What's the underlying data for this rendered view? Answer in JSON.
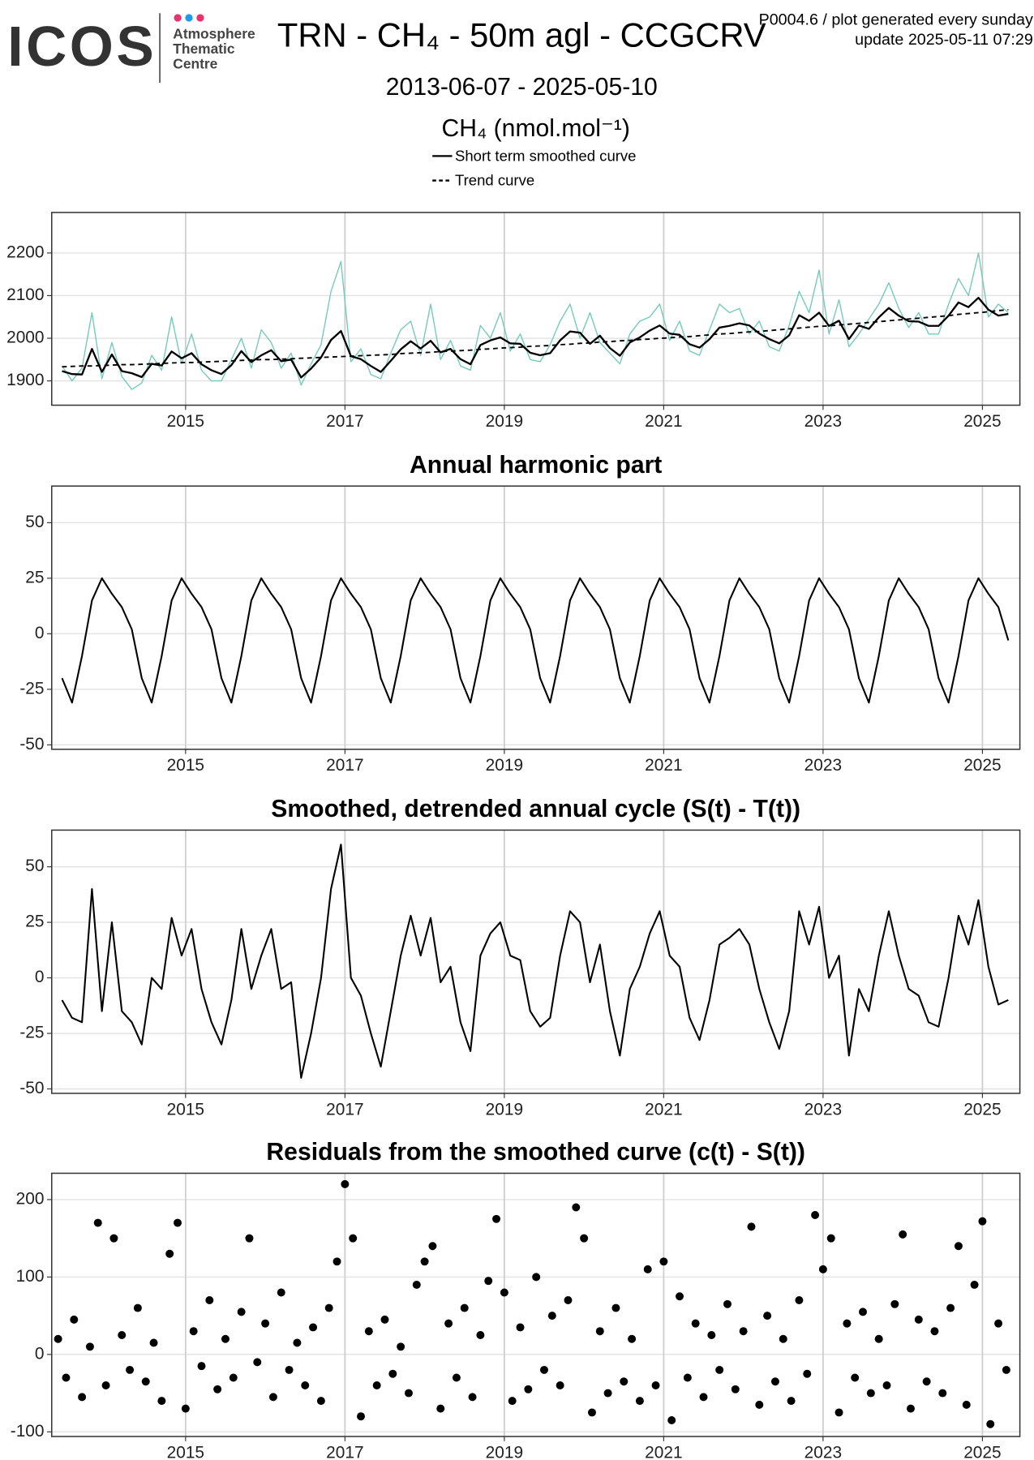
{
  "header": {
    "logo": "ICOS",
    "logo_lines": [
      "Atmosphere",
      "Thematic",
      "Centre"
    ],
    "title": "TRN - CH₄ - 50m agl - CCGCRV",
    "note": "P0004.6 / plot generated every sunday",
    "update": "update  2025-05-11 07:29",
    "period": "2013-06-07 - 2025-05-10"
  },
  "chart_data": [
    {
      "type": "line",
      "ylabel": "CH₄ (nmol.mol⁻¹)",
      "grid": true,
      "xlim": [
        2013.32,
        2025.47
      ],
      "xticks": [
        2015,
        2017,
        2019,
        2021,
        2023,
        2025
      ],
      "ylim": [
        1843,
        2295
      ],
      "yticks": [
        1900,
        2000,
        2100,
        2200
      ],
      "x": [
        2013.45,
        2013.575,
        2013.7,
        2013.825,
        2013.95,
        2014.075,
        2014.2,
        2014.325,
        2014.45,
        2014.575,
        2014.7,
        2014.825,
        2014.95,
        2015.075,
        2015.2,
        2015.325,
        2015.45,
        2015.575,
        2015.7,
        2015.825,
        2015.95,
        2016.075,
        2016.2,
        2016.325,
        2016.45,
        2016.575,
        2016.7,
        2016.825,
        2016.95,
        2017.075,
        2017.2,
        2017.325,
        2017.45,
        2017.575,
        2017.7,
        2017.825,
        2017.95,
        2018.075,
        2018.2,
        2018.325,
        2018.45,
        2018.575,
        2018.7,
        2018.825,
        2018.95,
        2019.075,
        2019.2,
        2019.325,
        2019.45,
        2019.575,
        2019.7,
        2019.825,
        2019.95,
        2020.075,
        2020.2,
        2020.325,
        2020.45,
        2020.575,
        2020.7,
        2020.825,
        2020.95,
        2021.075,
        2021.2,
        2021.325,
        2021.45,
        2021.575,
        2021.7,
        2021.825,
        2021.95,
        2022.075,
        2022.2,
        2022.325,
        2022.45,
        2022.575,
        2022.7,
        2022.825,
        2022.95,
        2023.075,
        2023.2,
        2023.325,
        2023.45,
        2023.575,
        2023.7,
        2023.825,
        2023.95,
        2024.075,
        2024.2,
        2024.325,
        2024.45,
        2024.575,
        2024.7,
        2024.825,
        2024.95,
        2025.075,
        2025.2,
        2025.325
      ],
      "series": [
        {
          "color": "#74cbb9",
          "width": 1.2,
          "values": [
            1935,
            1900,
            1930,
            2060,
            1905,
            1990,
            1910,
            1880,
            1895,
            1960,
            1925,
            2050,
            1940,
            2010,
            1925,
            1900,
            1900,
            1950,
            2000,
            1930,
            2020,
            1990,
            1930,
            1965,
            1890,
            1940,
            1985,
            2110,
            2180,
            1945,
            1975,
            1915,
            1905,
            1965,
            2020,
            2040,
            1960,
            2080,
            1950,
            1995,
            1935,
            1925,
            2030,
            2000,
            2060,
            1970,
            2010,
            1950,
            1945,
            1985,
            2040,
            2080,
            2000,
            2060,
            1990,
            1965,
            1940,
            2010,
            2040,
            2050,
            2080,
            1995,
            2040,
            1970,
            1960,
            2020,
            2080,
            2060,
            2070,
            2010,
            2040,
            1980,
            1970,
            2030,
            2110,
            2060,
            2160,
            2010,
            2090,
            1980,
            2010,
            2045,
            2080,
            2130,
            2070,
            2025,
            2060,
            2010,
            2010,
            2080,
            2140,
            2100,
            2200,
            2050,
            2080,
            2060
          ]
        },
        {
          "name": "Short term smoothed curve",
          "color": "#000000",
          "width": 2,
          "linestyle": "solid",
          "values": [
            1923,
            1916,
            1915,
            1975,
            1921,
            1962,
            1923,
            1918,
            1909,
            1940,
            1936,
            1969,
            1953,
            1965,
            1939,
            1925,
            1916,
            1937,
            1970,
            1944,
            1960,
            1972,
            1946,
            1950,
            1908,
            1929,
            1955,
            1996,
            2017,
            1958,
            1951,
            1935,
            1921,
            1947,
            1974,
            1993,
            1976,
            1994,
            1967,
            1975,
            1951,
            1939,
            1984,
            1995,
            2002,
            1988,
            1987,
            1966,
            1960,
            1965,
            1995,
            2016,
            2013,
            1987,
            2006,
            1977,
            1959,
            1990,
            2002,
            2018,
            2030,
            2011,
            2008,
            1986,
            1978,
            1998,
            2025,
            2029,
            2035,
            2030,
            2011,
            1998,
            1988,
            2007,
            2054,
            2041,
            2060,
            2029,
            2041,
            1998,
            2030,
            2022,
            2049,
            2071,
            2053,
            2040,
            2039,
            2029,
            2029,
            2053,
            2084,
            2073,
            2095,
            2067,
            2053,
            2057
          ]
        },
        {
          "name": "Trend curve",
          "color": "#000000",
          "width": 1.6,
          "linestyle": "dashed",
          "values": [
            1933,
            1934,
            1935,
            1935,
            1936,
            1937,
            1938,
            1938,
            1939,
            1940,
            1941,
            1942,
            1943,
            1943,
            1944,
            1945,
            1946,
            1947,
            1948,
            1949,
            1950,
            1950,
            1951,
            1952,
            1953,
            1954,
            1955,
            1956,
            1957,
            1958,
            1959,
            1960,
            1961,
            1962,
            1964,
            1965,
            1966,
            1967,
            1969,
            1970,
            1971,
            1972,
            1974,
            1975,
            1977,
            1978,
            1979,
            1981,
            1982,
            1983,
            1985,
            1986,
            1988,
            1989,
            1991,
            1992,
            1994,
            1995,
            1997,
            1998,
            2000,
            2001,
            2003,
            2004,
            2006,
            2008,
            2010,
            2011,
            2013,
            2015,
            2016,
            2018,
            2020,
            2022,
            2024,
            2026,
            2028,
            2029,
            2031,
            2033,
            2035,
            2037,
            2039,
            2041,
            2043,
            2045,
            2047,
            2049,
            2051,
            2053,
            2056,
            2058,
            2060,
            2062,
            2065,
            2067
          ]
        }
      ]
    },
    {
      "type": "line",
      "title": "Annual harmonic part",
      "grid": true,
      "xlim": [
        2013.32,
        2025.47
      ],
      "xticks": [
        2015,
        2017,
        2019,
        2021,
        2023,
        2025
      ],
      "ylim": [
        -52,
        66.5
      ],
      "yticks": [
        -50,
        -25,
        0,
        25,
        50
      ],
      "x": [
        2013.45,
        2013.575,
        2013.7,
        2013.825,
        2013.95,
        2014.075,
        2014.2,
        2014.325,
        2014.45,
        2014.575,
        2014.7,
        2014.825,
        2014.95,
        2015.075,
        2015.2,
        2015.325,
        2015.45,
        2015.575,
        2015.7,
        2015.825,
        2015.95,
        2016.075,
        2016.2,
        2016.325,
        2016.45,
        2016.575,
        2016.7,
        2016.825,
        2016.95,
        2017.075,
        2017.2,
        2017.325,
        2017.45,
        2017.575,
        2017.7,
        2017.825,
        2017.95,
        2018.075,
        2018.2,
        2018.325,
        2018.45,
        2018.575,
        2018.7,
        2018.825,
        2018.95,
        2019.075,
        2019.2,
        2019.325,
        2019.45,
        2019.575,
        2019.7,
        2019.825,
        2019.95,
        2020.075,
        2020.2,
        2020.325,
        2020.45,
        2020.575,
        2020.7,
        2020.825,
        2020.95,
        2021.075,
        2021.2,
        2021.325,
        2021.45,
        2021.575,
        2021.7,
        2021.825,
        2021.95,
        2022.075,
        2022.2,
        2022.325,
        2022.45,
        2022.575,
        2022.7,
        2022.825,
        2022.95,
        2023.075,
        2023.2,
        2023.325,
        2023.45,
        2023.575,
        2023.7,
        2023.825,
        2023.95,
        2024.075,
        2024.2,
        2024.325,
        2024.45,
        2024.575,
        2024.7,
        2024.825,
        2024.95,
        2025.075,
        2025.2,
        2025.325
      ],
      "series": [
        {
          "color": "#000000",
          "width": 1.8,
          "values": [
            -20,
            -31,
            -10,
            15,
            25,
            18,
            12,
            2,
            -20,
            -31,
            -10,
            15,
            25,
            18,
            12,
            2,
            -20,
            -31,
            -10,
            15,
            25,
            18,
            12,
            2,
            -20,
            -31,
            -10,
            15,
            25,
            18,
            12,
            2,
            -20,
            -31,
            -10,
            15,
            25,
            18,
            12,
            2,
            -20,
            -31,
            -10,
            15,
            25,
            18,
            12,
            2,
            -20,
            -31,
            -10,
            15,
            25,
            18,
            12,
            2,
            -20,
            -31,
            -10,
            15,
            25,
            18,
            12,
            2,
            -20,
            -31,
            -10,
            15,
            25,
            18,
            12,
            2,
            -20,
            -31,
            -10,
            15,
            25,
            18,
            12,
            2,
            -20,
            -31,
            -10,
            15,
            25,
            18,
            12,
            2,
            -20,
            -31,
            -10,
            15,
            25,
            18,
            12,
            -3
          ]
        }
      ]
    },
    {
      "type": "line",
      "title": "Smoothed, detrended annual cycle (S(t) - T(t))",
      "grid": true,
      "xlim": [
        2013.32,
        2025.47
      ],
      "xticks": [
        2015,
        2017,
        2019,
        2021,
        2023,
        2025
      ],
      "ylim": [
        -52,
        66.5
      ],
      "yticks": [
        -50,
        -25,
        0,
        25,
        50
      ],
      "x": [
        2013.45,
        2013.575,
        2013.7,
        2013.825,
        2013.95,
        2014.075,
        2014.2,
        2014.325,
        2014.45,
        2014.575,
        2014.7,
        2014.825,
        2014.95,
        2015.075,
        2015.2,
        2015.325,
        2015.45,
        2015.575,
        2015.7,
        2015.825,
        2015.95,
        2016.075,
        2016.2,
        2016.325,
        2016.45,
        2016.575,
        2016.7,
        2016.825,
        2016.95,
        2017.075,
        2017.2,
        2017.325,
        2017.45,
        2017.575,
        2017.7,
        2017.825,
        2017.95,
        2018.075,
        2018.2,
        2018.325,
        2018.45,
        2018.575,
        2018.7,
        2018.825,
        2018.95,
        2019.075,
        2019.2,
        2019.325,
        2019.45,
        2019.575,
        2019.7,
        2019.825,
        2019.95,
        2020.075,
        2020.2,
        2020.325,
        2020.45,
        2020.575,
        2020.7,
        2020.825,
        2020.95,
        2021.075,
        2021.2,
        2021.325,
        2021.45,
        2021.575,
        2021.7,
        2021.825,
        2021.95,
        2022.075,
        2022.2,
        2022.325,
        2022.45,
        2022.575,
        2022.7,
        2022.825,
        2022.95,
        2023.075,
        2023.2,
        2023.325,
        2023.45,
        2023.575,
        2023.7,
        2023.825,
        2023.95,
        2024.075,
        2024.2,
        2024.325,
        2024.45,
        2024.575,
        2024.7,
        2024.825,
        2024.95,
        2025.075,
        2025.2,
        2025.325
      ],
      "series": [
        {
          "color": "#000000",
          "width": 1.8,
          "values": [
            -10,
            -18,
            -20,
            40,
            -15,
            25,
            -15,
            -20,
            -30,
            0,
            -5,
            27,
            10,
            22,
            -5,
            -20,
            -30,
            -10,
            22,
            -5,
            10,
            22,
            -5,
            -2,
            -45,
            -25,
            0,
            40,
            60,
            0,
            -8,
            -25,
            -40,
            -15,
            10,
            28,
            10,
            27,
            -2,
            5,
            -20,
            -33,
            10,
            20,
            25,
            10,
            8,
            -15,
            -22,
            -18,
            10,
            30,
            25,
            -2,
            15,
            -15,
            -35,
            -5,
            5,
            20,
            30,
            10,
            5,
            -18,
            -28,
            -10,
            15,
            18,
            22,
            15,
            -5,
            -20,
            -32,
            -15,
            30,
            15,
            32,
            0,
            10,
            -35,
            -5,
            -15,
            10,
            30,
            10,
            -5,
            -8,
            -20,
            -22,
            0,
            28,
            15,
            35,
            5,
            -12,
            -10
          ]
        }
      ]
    },
    {
      "type": "scatter",
      "title": "Residuals from the smoothed curve (c(t) - S(t))",
      "grid": true,
      "xlim": [
        2013.32,
        2025.47
      ],
      "xticks": [
        2015,
        2017,
        2019,
        2021,
        2023,
        2025
      ],
      "ylim": [
        -106,
        234
      ],
      "yticks": [
        -100,
        0,
        100,
        200
      ],
      "color": "#000000",
      "x": [
        2013.4,
        2013.5,
        2013.6,
        2013.7,
        2013.8,
        2013.9,
        2014.0,
        2014.1,
        2014.2,
        2014.3,
        2014.4,
        2014.5,
        2014.6,
        2014.7,
        2014.8,
        2014.9,
        2015.0,
        2015.1,
        2015.2,
        2015.3,
        2015.4,
        2015.5,
        2015.6,
        2015.7,
        2015.8,
        2015.9,
        2016.0,
        2016.1,
        2016.2,
        2016.3,
        2016.4,
        2016.5,
        2016.6,
        2016.7,
        2016.8,
        2016.9,
        2017.0,
        2017.1,
        2017.2,
        2017.3,
        2017.4,
        2017.5,
        2017.6,
        2017.7,
        2017.8,
        2017.9,
        2018.0,
        2018.1,
        2018.2,
        2018.3,
        2018.4,
        2018.5,
        2018.6,
        2018.7,
        2018.8,
        2018.9,
        2019.0,
        2019.1,
        2019.2,
        2019.3,
        2019.4,
        2019.5,
        2019.6,
        2019.7,
        2019.8,
        2019.9,
        2020.0,
        2020.1,
        2020.2,
        2020.3,
        2020.4,
        2020.5,
        2020.6,
        2020.7,
        2020.8,
        2020.9,
        2021.0,
        2021.1,
        2021.2,
        2021.3,
        2021.4,
        2021.5,
        2021.6,
        2021.7,
        2021.8,
        2021.9,
        2022.0,
        2022.1,
        2022.2,
        2022.3,
        2022.4,
        2022.5,
        2022.6,
        2022.7,
        2022.8,
        2022.9,
        2023.0,
        2023.1,
        2023.2,
        2023.3,
        2023.4,
        2023.5,
        2023.6,
        2023.7,
        2023.8,
        2023.9,
        2024.0,
        2024.1,
        2024.2,
        2024.3,
        2024.4,
        2024.5,
        2024.6,
        2024.7,
        2024.8,
        2024.9,
        2025.0,
        2025.1,
        2025.2,
        2025.3
      ],
      "values": [
        20,
        -30,
        45,
        -55,
        10,
        170,
        -40,
        150,
        25,
        -20,
        60,
        -35,
        15,
        -60,
        130,
        170,
        -70,
        30,
        -15,
        70,
        -45,
        20,
        -30,
        55,
        150,
        -10,
        40,
        -55,
        80,
        -20,
        15,
        -40,
        35,
        -60,
        60,
        120,
        220,
        150,
        -80,
        30,
        -40,
        45,
        -25,
        10,
        -50,
        90,
        120,
        140,
        -70,
        40,
        -30,
        60,
        -55,
        25,
        95,
        175,
        80,
        -60,
        35,
        -45,
        100,
        -20,
        50,
        -40,
        70,
        190,
        150,
        -75,
        30,
        -50,
        60,
        -35,
        20,
        -60,
        110,
        -40,
        120,
        -85,
        75,
        -30,
        40,
        -55,
        25,
        -20,
        65,
        -45,
        30,
        165,
        -65,
        50,
        -35,
        20,
        -60,
        70,
        -25,
        180,
        110,
        150,
        -75,
        40,
        -30,
        55,
        -50,
        20,
        -40,
        65,
        155,
        -70,
        45,
        -35,
        30,
        -50,
        60,
        140,
        -65,
        90,
        172,
        -90,
        40,
        -20
      ]
    }
  ]
}
